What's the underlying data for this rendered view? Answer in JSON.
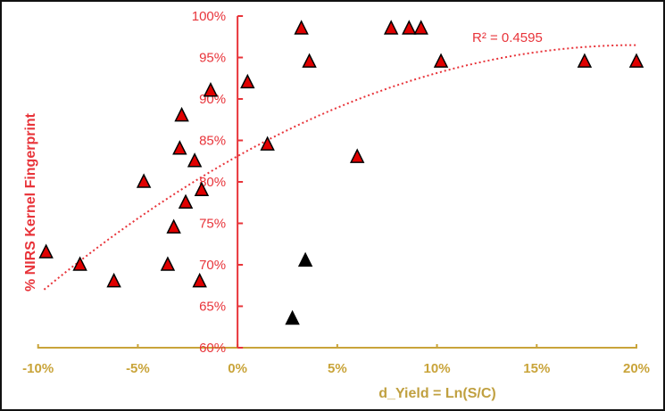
{
  "chart_data": {
    "type": "scatter",
    "title": "",
    "xlabel": "d_Yield  = Ln(S/C)",
    "ylabel": "% NIRS  Kernel Fingerprint",
    "xlim": [
      -10,
      20
    ],
    "ylim": [
      60,
      100
    ],
    "x_ticks": [
      -10,
      -5,
      0,
      5,
      10,
      15,
      20
    ],
    "x_tick_labels": [
      "-10%",
      "-5%",
      "0%",
      "5%",
      "10%",
      "15%",
      "20%"
    ],
    "y_ticks": [
      60,
      65,
      70,
      75,
      80,
      85,
      90,
      95,
      100
    ],
    "y_tick_labels": [
      "60%",
      "65%",
      "70%",
      "75%",
      "80%",
      "85%",
      "90%",
      "95%",
      "100%"
    ],
    "grid": false,
    "legend": "none",
    "colors": {
      "y_axis": "#e8343a",
      "x_axis": "#c9a43a",
      "marker_red": "#e00000",
      "marker_black": "#000000",
      "trendline": "#e8343a"
    },
    "marker": "triangle",
    "series": [
      {
        "color": "#e00000",
        "points": [
          [
            -9.6,
            71.5
          ],
          [
            -7.9,
            70
          ],
          [
            -6.2,
            68
          ],
          [
            -4.7,
            80
          ],
          [
            -3.5,
            70
          ],
          [
            -3.2,
            74.5
          ],
          [
            -2.9,
            84
          ],
          [
            -2.8,
            88
          ],
          [
            -2.6,
            77.5
          ],
          [
            -2.15,
            82.5
          ],
          [
            -1.8,
            79
          ],
          [
            -1.9,
            68
          ],
          [
            -1.35,
            91
          ],
          [
            0.5,
            92
          ],
          [
            1.5,
            84.5
          ],
          [
            3.2,
            98.5
          ],
          [
            3.6,
            94.5
          ],
          [
            6.0,
            83
          ],
          [
            7.7,
            98.5
          ],
          [
            8.6,
            98.5
          ],
          [
            9.2,
            98.5
          ],
          [
            10.2,
            94.5
          ],
          [
            17.4,
            94.5
          ],
          [
            20.0,
            94.5
          ]
        ]
      },
      {
        "color": "#000000",
        "points": [
          [
            3.4,
            70.5
          ],
          [
            2.75,
            63.5
          ]
        ]
      }
    ],
    "trendline": {
      "type": "polynomial",
      "order": 2,
      "style": "dotted",
      "label": "R² = 0.4595"
    }
  }
}
